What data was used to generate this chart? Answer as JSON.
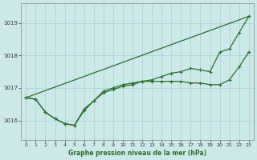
{
  "background_color": "#cce8e8",
  "grid_color": "#b0d8d8",
  "line_color": "#2d6e2d",
  "xlabel": "Graphe pression niveau de la mer (hPa)",
  "xlim": [
    -0.5,
    23.5
  ],
  "ylim": [
    1015.4,
    1019.6
  ],
  "yticks": [
    1016,
    1017,
    1018,
    1019
  ],
  "xticks": [
    0,
    1,
    2,
    3,
    4,
    5,
    6,
    7,
    8,
    9,
    10,
    11,
    12,
    13,
    14,
    15,
    16,
    17,
    18,
    19,
    20,
    21,
    22,
    23
  ],
  "line_straight": [
    [
      0,
      1016.7
    ],
    [
      23,
      1019.2
    ]
  ],
  "line_wavy": [
    1016.7,
    1016.65,
    1016.25,
    1016.05,
    1015.9,
    1015.85,
    1016.3,
    1016.6,
    1016.85,
    1016.95,
    1017.05,
    1017.1,
    1017.2,
    1017.25,
    1017.35,
    1017.45,
    1017.5,
    1017.6,
    1017.55,
    1017.5,
    1018.1,
    1018.2,
    1018.7,
    1019.2
  ],
  "line_flat": [
    1016.7,
    1016.65,
    1016.25,
    1016.05,
    1015.9,
    1015.85,
    1016.35,
    1016.6,
    1016.9,
    1017.0,
    1017.1,
    1017.15,
    1017.2,
    1017.2,
    1017.2,
    1017.2,
    1017.2,
    1017.15,
    1017.15,
    1017.1,
    1017.1,
    1017.25,
    1017.65,
    1018.1
  ],
  "line_width": 0.9,
  "marker_size": 3,
  "fontsize_tick": 4.5,
  "fontsize_xlabel": 5.5
}
